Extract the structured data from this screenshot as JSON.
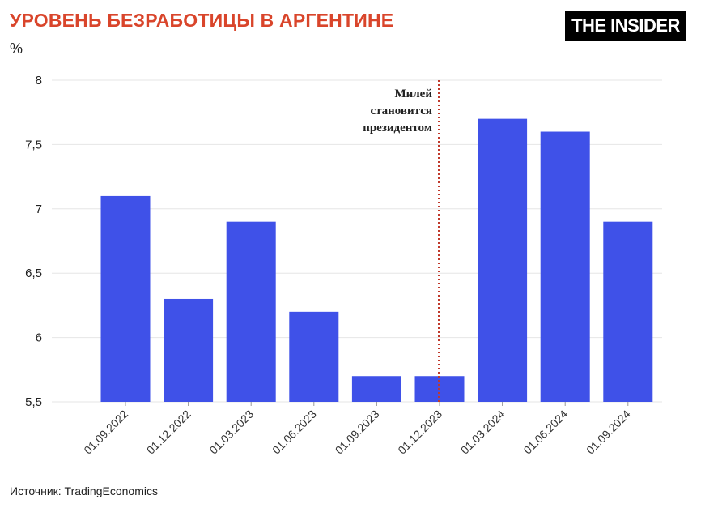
{
  "header": {
    "title": "УРОВЕНЬ БЕЗРАБОТИЦЫ В АРГЕНТИНЕ",
    "logo": "THE INSIDER",
    "unit": "%"
  },
  "footer": {
    "source": "Источник: TradingEconomics"
  },
  "colors": {
    "title": "#d9452b",
    "bar": "#3f51e8",
    "annotation_line": "#c0392b"
  },
  "chart_data": {
    "type": "bar",
    "categories": [
      "01.09.2022",
      "01.12.2022",
      "01.03.2023",
      "01.06.2023",
      "01.09.2023",
      "01.12.2023",
      "01.03.2024",
      "01.06.2024",
      "01.09.2024"
    ],
    "values": [
      7.1,
      6.3,
      6.9,
      6.2,
      5.7,
      5.7,
      7.7,
      7.6,
      6.9
    ],
    "ylim": [
      5.5,
      8
    ],
    "yticks": [
      5.5,
      6,
      6.5,
      7,
      7.5,
      8
    ],
    "ytick_labels": [
      "5,5",
      "6",
      "6,5",
      "7",
      "7,5",
      "8"
    ],
    "grid": true,
    "annotation": {
      "lines": [
        "Милей",
        "становится",
        "президентом"
      ],
      "after_category": "01.12.2023"
    }
  }
}
